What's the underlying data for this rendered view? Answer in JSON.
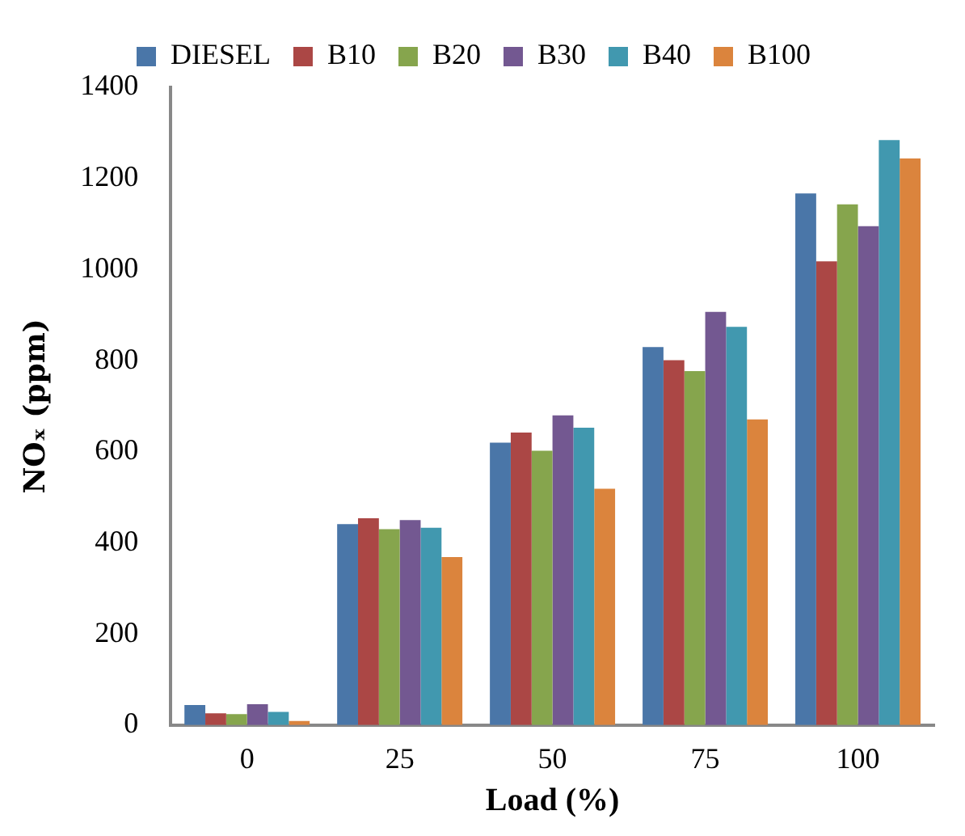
{
  "chart_data": {
    "type": "bar",
    "xlabel": "Load (%)",
    "ylabel": "NOₓ (ppm)",
    "categories": [
      "0",
      "25",
      "50",
      "75",
      "100"
    ],
    "series": [
      {
        "name": "DIESEL",
        "color": "#4a76a8",
        "values": [
          44,
          441,
          620,
          830,
          1167
        ]
      },
      {
        "name": "B10",
        "color": "#ab4745",
        "values": [
          26,
          454,
          642,
          801,
          1018
        ]
      },
      {
        "name": "B20",
        "color": "#86a54d",
        "values": [
          24,
          430,
          602,
          777,
          1143
        ]
      },
      {
        "name": "B30",
        "color": "#735891",
        "values": [
          46,
          450,
          680,
          907,
          1095
        ]
      },
      {
        "name": "B40",
        "color": "#4198af",
        "values": [
          29,
          433,
          653,
          874,
          1284
        ]
      },
      {
        "name": "B100",
        "color": "#db843d",
        "values": [
          9,
          369,
          519,
          671,
          1244
        ]
      }
    ],
    "ylim": [
      0,
      1400
    ],
    "yticks": [
      0,
      200,
      400,
      600,
      800,
      1000,
      1200,
      1400
    ],
    "grid": false,
    "legend": "top"
  }
}
